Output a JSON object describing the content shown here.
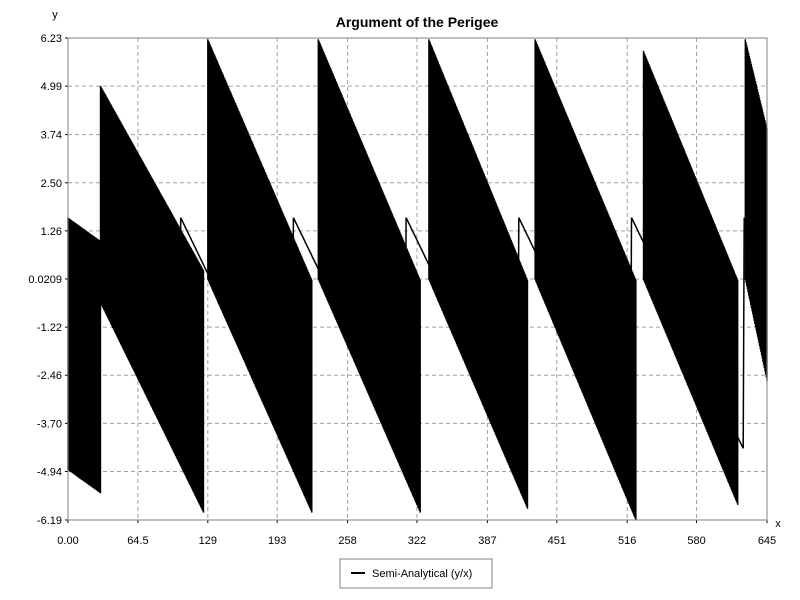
{
  "chart_data": {
    "type": "line",
    "title": "Argument of the Perigee",
    "xlabel": "x",
    "ylabel": "y",
    "xlim": [
      0,
      645
    ],
    "ylim": [
      -6.19,
      6.23
    ],
    "x_ticks": [
      "0.00",
      "64.5",
      "129",
      "193",
      "258",
      "322",
      "387",
      "451",
      "516",
      "580",
      "645"
    ],
    "x_tick_values": [
      0,
      64.5,
      129,
      193,
      258,
      322,
      387,
      451,
      516,
      580,
      645
    ],
    "y_ticks": [
      "6.23",
      "4.99",
      "3.74",
      "2.50",
      "1.26",
      "0.0209",
      "-1.22",
      "-2.46",
      "-3.70",
      "-4.94",
      "-6.19"
    ],
    "y_tick_values": [
      6.23,
      4.99,
      3.74,
      2.5,
      1.26,
      0.0209,
      -1.22,
      -2.46,
      -3.7,
      -4.94,
      -6.19
    ],
    "grid": true,
    "legend_position": "bottom-center",
    "series": [
      {
        "name": "Semi-Analytical (y/x)",
        "color": "#000000",
        "kind": "oscillating-band",
        "segments": [
          {
            "x_start": 0,
            "x_end": 30,
            "upper_start": 1.6,
            "upper_end": 1.0,
            "lower_start": -4.9,
            "lower_end": -5.5
          },
          {
            "x_start": 30,
            "x_end": 125,
            "upper_start": 5.0,
            "upper_end": 0.25,
            "lower_start": -0.6,
            "lower_end": -6.0
          },
          {
            "x_start": 129,
            "x_end": 225,
            "upper_start": 6.2,
            "upper_end": 0.0,
            "lower_start": 0.0,
            "lower_end": -6.0
          },
          {
            "x_start": 231,
            "x_end": 325,
            "upper_start": 6.2,
            "upper_end": 0.0,
            "lower_start": 0.0,
            "lower_end": -6.0
          },
          {
            "x_start": 333,
            "x_end": 424,
            "upper_start": 6.2,
            "upper_end": 0.0,
            "lower_start": 0.0,
            "lower_end": -5.9
          },
          {
            "x_start": 431,
            "x_end": 524,
            "upper_start": 6.2,
            "upper_end": 0.0,
            "lower_start": 0.0,
            "lower_end": -6.2
          },
          {
            "x_start": 531,
            "x_end": 618,
            "upper_start": 5.9,
            "upper_end": 0.0,
            "lower_start": 0.0,
            "lower_end": -5.8
          },
          {
            "x_start": 625,
            "x_end": 645,
            "upper_start": 6.2,
            "upper_end": 3.9,
            "lower_start": 0.0,
            "lower_end": -2.6
          }
        ],
        "baseline": {
          "x_start": 0,
          "x_end": 645,
          "y_start": 1.6,
          "period": 104,
          "descent": 6.0
        }
      }
    ]
  }
}
